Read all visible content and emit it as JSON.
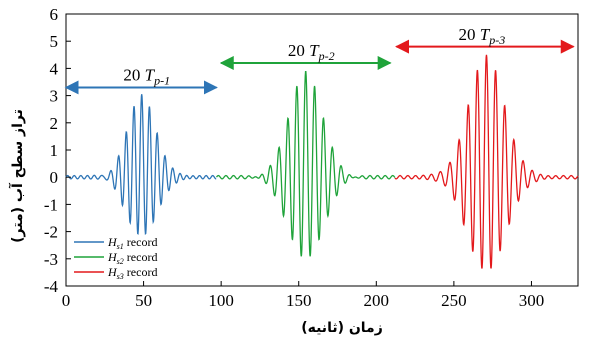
{
  "chart_data": {
    "type": "line",
    "title": "",
    "xlabel": "زمان (ثانیه)",
    "ylabel": "تراز سطح آب (متر)",
    "xlim": [
      0,
      330
    ],
    "ylim": [
      -4,
      6
    ],
    "xticks": [
      0,
      50,
      100,
      150,
      200,
      250,
      300
    ],
    "yticks": [
      -4,
      -3,
      -2,
      -1,
      0,
      1,
      2,
      3,
      4,
      5,
      6
    ],
    "grid": false,
    "legend_position": "bottom-left",
    "series": [
      {
        "name": "Hs1 record",
        "legend": {
          "main": "H",
          "sub": "s1",
          "tail": " record"
        },
        "color": "#2e75b6",
        "t_range": [
          0,
          97
        ],
        "center": 48.8,
        "period": 5.0,
        "sigma": 9.5,
        "peak": 3.05,
        "trough": -2.15
      },
      {
        "name": "Hs2 record",
        "legend": {
          "main": "H",
          "sub": "s2",
          "tail": " record"
        },
        "color": "#1fa33a",
        "t_range": [
          97,
          212
        ],
        "center": 154.5,
        "period": 5.75,
        "sigma": 11.0,
        "peak": 3.9,
        "trough": -3.0
      },
      {
        "name": "Hs3 record",
        "legend": {
          "main": "H",
          "sub": "s3",
          "tail": " record"
        },
        "color": "#e3191c",
        "t_range": [
          212,
          330
        ],
        "center": 271.0,
        "period": 5.9,
        "sigma": 12.0,
        "peak": 4.5,
        "trough": -3.45
      }
    ],
    "annotations": [
      {
        "main": "20 T",
        "sub": "p-1",
        "color": "#2e75b6",
        "x_from": 0,
        "x_to": 97,
        "y": 3.3,
        "label_x": 37,
        "label_y": 3.55
      },
      {
        "main": "20 T",
        "sub": "p-2",
        "color": "#1fa33a",
        "x_from": 100,
        "x_to": 209,
        "y": 4.2,
        "label_x": 143,
        "label_y": 4.45
      },
      {
        "main": "20 T",
        "sub": "p-3",
        "color": "#e3191c",
        "x_from": 213,
        "x_to": 327,
        "y": 4.8,
        "label_x": 253,
        "label_y": 5.05
      }
    ]
  }
}
